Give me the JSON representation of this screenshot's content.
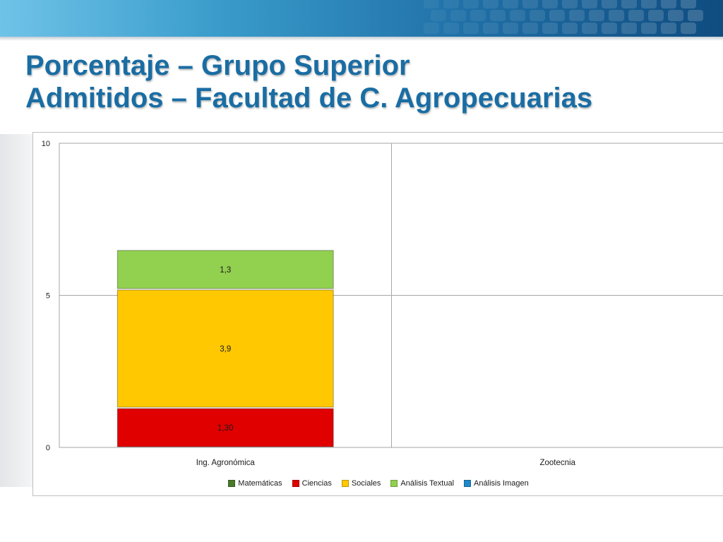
{
  "slide": {
    "title_line1": "Porcentaje – Grupo Superior",
    "title_line2": "Admitidos – Facultad de C. Agropecuarias"
  },
  "chart_data": {
    "type": "bar",
    "stacked": true,
    "categories": [
      "Ing. Agronómica",
      "Zootecnia"
    ],
    "series": [
      {
        "name": "Matemáticas",
        "color": "#4a7a2a",
        "values": [
          null,
          null
        ],
        "labels": [
          null,
          null
        ]
      },
      {
        "name": "Ciencias",
        "color": "#e00000",
        "values": [
          1.3,
          null
        ],
        "labels": [
          "1,30",
          null
        ]
      },
      {
        "name": "Sociales",
        "color": "#ffc800",
        "values": [
          3.9,
          null
        ],
        "labels": [
          "3,9",
          null
        ]
      },
      {
        "name": "Análisis Textual",
        "color": "#92d050",
        "values": [
          1.3,
          null
        ],
        "labels": [
          "1,3",
          null
        ]
      },
      {
        "name": "Análisis Imagen",
        "color": "#1e88c8",
        "values": [
          null,
          null
        ],
        "labels": [
          null,
          null
        ]
      }
    ],
    "ylim": [
      0,
      10
    ],
    "yticks": [
      "0",
      "5",
      "10"
    ],
    "grid": true,
    "legend": "bottom",
    "title": "",
    "xlabel": "",
    "ylabel": ""
  }
}
